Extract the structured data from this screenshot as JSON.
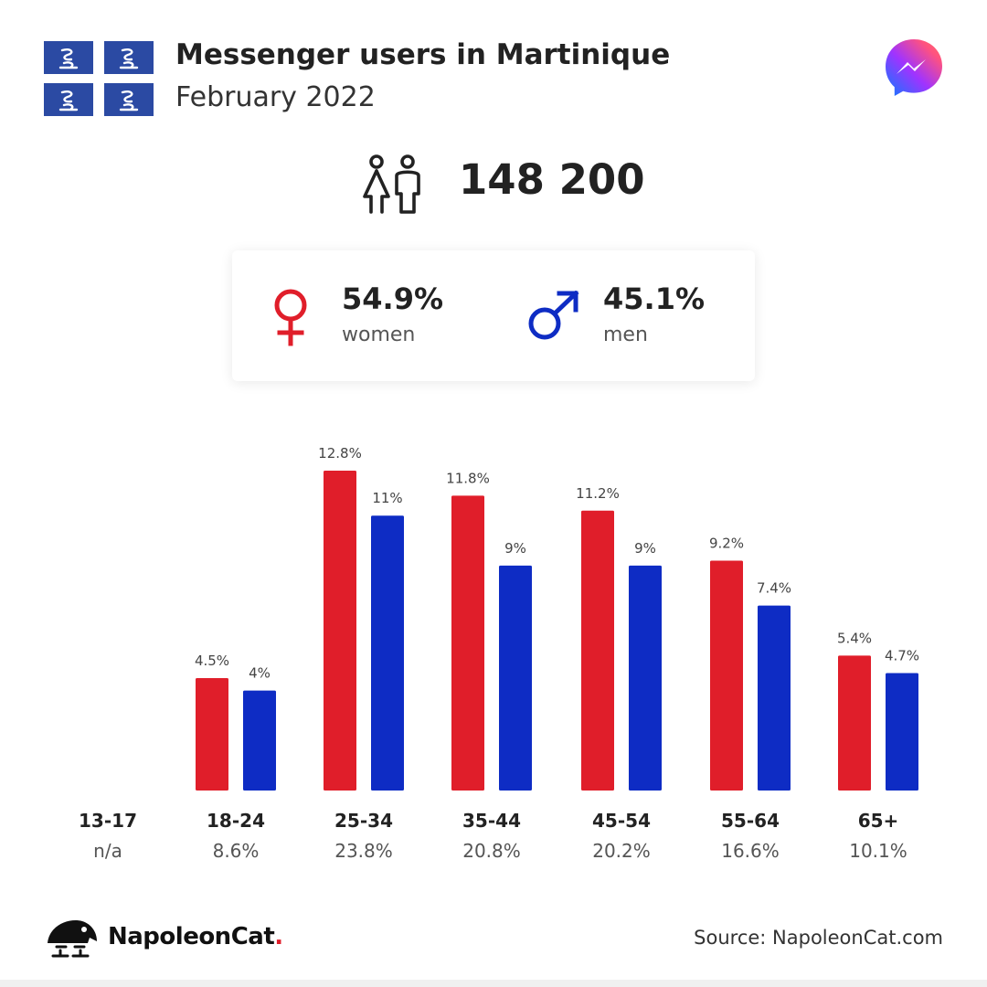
{
  "header": {
    "title": "Messenger users in Martinique",
    "subtitle": "February 2022"
  },
  "flag": {
    "icon": "martinique-flag-icon",
    "color": "#2b4aa3"
  },
  "logo": {
    "icon": "messenger-logo-icon"
  },
  "total": {
    "icon": "people-icon",
    "value": "148 200"
  },
  "gender": {
    "women": {
      "pct": "54.9%",
      "label": "women",
      "icon": "female-symbol-icon",
      "color": "#e01e2a"
    },
    "men": {
      "pct": "45.1%",
      "label": "men",
      "icon": "male-symbol-icon",
      "color": "#0e2cc4"
    }
  },
  "chart_data": {
    "type": "bar",
    "categories": [
      "13-17",
      "18-24",
      "25-34",
      "35-44",
      "45-54",
      "55-64",
      "65+"
    ],
    "category_totals": [
      "n/a",
      "8.6%",
      "23.8%",
      "20.8%",
      "20.2%",
      "16.6%",
      "10.1%"
    ],
    "series": [
      {
        "color": "#e01e2a",
        "values": [
          null,
          4.5,
          12.8,
          11.8,
          11.2,
          9.2,
          5.4
        ],
        "labels": [
          "",
          "4.5%",
          "12.8%",
          "11.8%",
          "11.2%",
          "9.2%",
          "5.4%"
        ]
      },
      {
        "color": "#0e2cc4",
        "values": [
          null,
          4,
          11,
          9,
          9,
          7.4,
          4.7
        ],
        "labels": [
          "",
          "4%",
          "11%",
          "9%",
          "9%",
          "7.4%",
          "4.7%"
        ]
      }
    ],
    "ylim": [
      0,
      12.8
    ],
    "grid": false,
    "legend": "none"
  },
  "footer": {
    "brand_name": "NapoleonCat",
    "brand_dot": ".",
    "brand_icon": "napoleoncat-logo-icon",
    "source": "Source: NapoleonCat.com"
  }
}
